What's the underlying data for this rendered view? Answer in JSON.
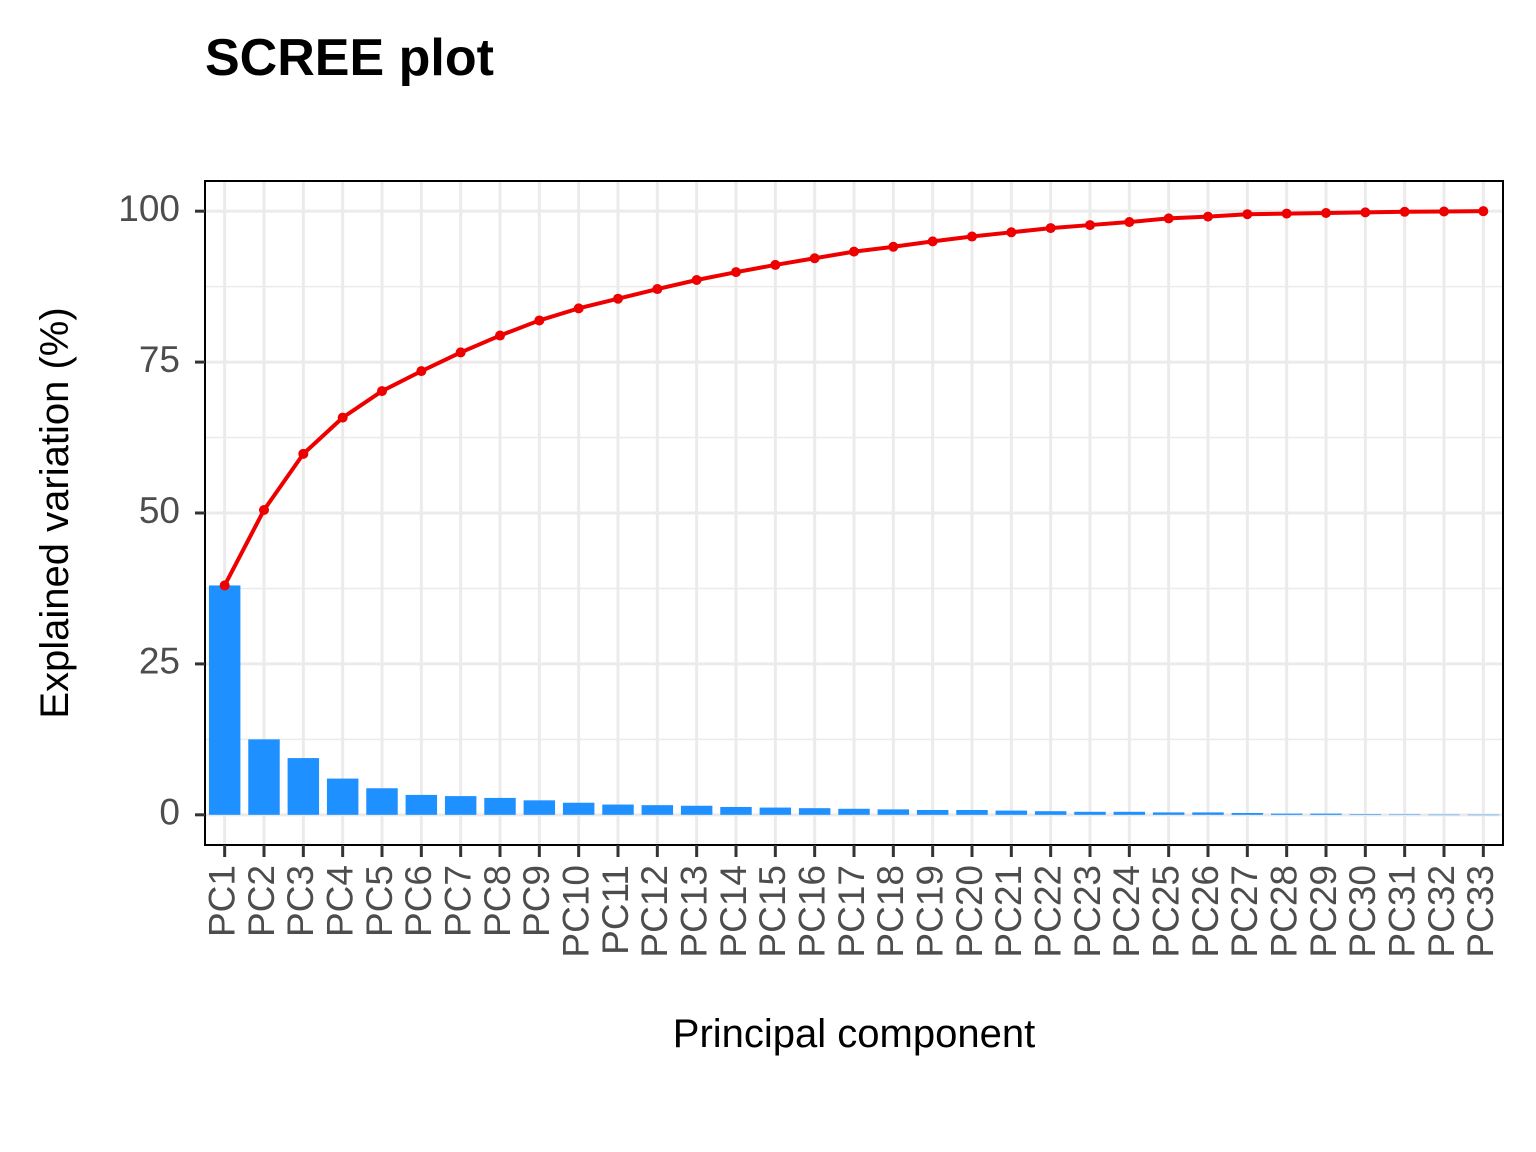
{
  "chart_data": {
    "type": "bar",
    "title": "SCREE plot",
    "xlabel": "Principal component",
    "ylabel": "Explained variation (%)",
    "ylim": [
      -5,
      105
    ],
    "y_ticks": [
      "0",
      "25",
      "50",
      "75",
      "100"
    ],
    "y_tick_values": [
      0,
      25,
      50,
      75,
      100
    ],
    "grid": true,
    "categories": [
      "PC1",
      "PC2",
      "PC3",
      "PC4",
      "PC5",
      "PC6",
      "PC7",
      "PC8",
      "PC9",
      "PC10",
      "PC11",
      "PC12",
      "PC13",
      "PC14",
      "PC15",
      "PC16",
      "PC17",
      "PC18",
      "PC19",
      "PC20",
      "PC21",
      "PC22",
      "PC23",
      "PC24",
      "PC25",
      "PC26",
      "PC27",
      "PC28",
      "PC29",
      "PC30",
      "PC31",
      "PC32",
      "PC33"
    ],
    "series": [
      {
        "type": "bar",
        "color": "#1E90FF",
        "values": [
          38.0,
          12.5,
          9.4,
          6.0,
          4.4,
          3.3,
          3.1,
          2.8,
          2.4,
          2.0,
          1.7,
          1.6,
          1.5,
          1.3,
          1.2,
          1.1,
          1.0,
          0.9,
          0.8,
          0.8,
          0.7,
          0.6,
          0.5,
          0.5,
          0.4,
          0.4,
          0.3,
          0.2,
          0.2,
          0.1,
          0.05,
          0.03,
          0.02
        ]
      },
      {
        "type": "line",
        "color": "#EE0000",
        "values": [
          38.0,
          50.5,
          59.8,
          65.8,
          70.2,
          73.5,
          76.6,
          79.4,
          81.9,
          83.9,
          85.5,
          87.1,
          88.6,
          89.9,
          91.1,
          92.2,
          93.3,
          94.1,
          95.0,
          95.8,
          96.5,
          97.2,
          97.7,
          98.2,
          98.8,
          99.1,
          99.5,
          99.6,
          99.7,
          99.8,
          99.9,
          99.95,
          100.0
        ]
      }
    ]
  }
}
